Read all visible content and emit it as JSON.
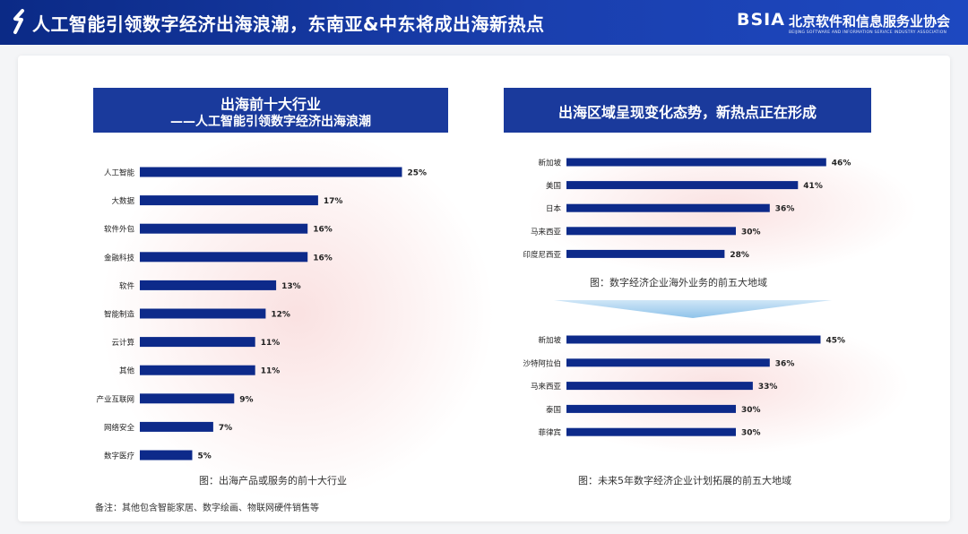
{
  "header": {
    "title": "人工智能引领数字经济出海浪潮，东南亚&中东将成出海新热点",
    "brand_abbr": "BSIA",
    "brand_name": "北京软件和信息服务业协会",
    "brand_en": "BEIJING SOFTWARE AND INFORMATION SERVICE INDUSTRY ASSOCIATION"
  },
  "left_panel": {
    "title_line1": "出海前十大行业",
    "title_line2": "——人工智能引领数字经济出海浪潮",
    "caption": "图：出海产品或服务的前十大行业"
  },
  "right_panel": {
    "title": "出海区域呈现变化态势，新热点正在形成",
    "caption_top": "图：数字经济企业海外业务的前五大地域",
    "caption_bottom": "图：未来5年数字经济企业计划拓展的前五大地域"
  },
  "note": "备注：其他包含智能家居、数字绘画、物联网硬件销售等",
  "colors": {
    "bar": "#0d2a8a",
    "title_bg": "#1a3a9c",
    "header_bg": "#0b2a86",
    "glow": "#f6c9c9",
    "arrow": "#a9d3f0"
  },
  "chart_data": [
    {
      "type": "bar",
      "orientation": "horizontal",
      "categories": [
        "人工智能",
        "大数据",
        "软件外包",
        "金融科技",
        "软件",
        "智能制造",
        "云计算",
        "其他",
        "产业互联网",
        "网络安全",
        "数字医疗"
      ],
      "values": [
        25,
        17,
        16,
        16,
        13,
        12,
        11,
        11,
        9,
        7,
        5
      ],
      "labels": [
        "25%",
        "17%",
        "16%",
        "16%",
        "13%",
        "12%",
        "11%",
        "11%",
        "9%",
        "7%",
        "5%"
      ],
      "unit": "%"
    },
    {
      "type": "bar",
      "orientation": "horizontal",
      "categories": [
        "新加坡",
        "美国",
        "日本",
        "马来西亚",
        "印度尼西亚"
      ],
      "values": [
        46,
        41,
        36,
        30,
        28
      ],
      "labels": [
        "46%",
        "41%",
        "36%",
        "30%",
        "28%"
      ],
      "unit": "%"
    },
    {
      "type": "bar",
      "orientation": "horizontal",
      "categories": [
        "新加坡",
        "沙特阿拉伯",
        "马来西亚",
        "泰国",
        "菲律宾"
      ],
      "values": [
        45,
        36,
        33,
        30,
        30
      ],
      "labels": [
        "45%",
        "36%",
        "33%",
        "30%",
        "30%"
      ],
      "unit": "%"
    }
  ]
}
